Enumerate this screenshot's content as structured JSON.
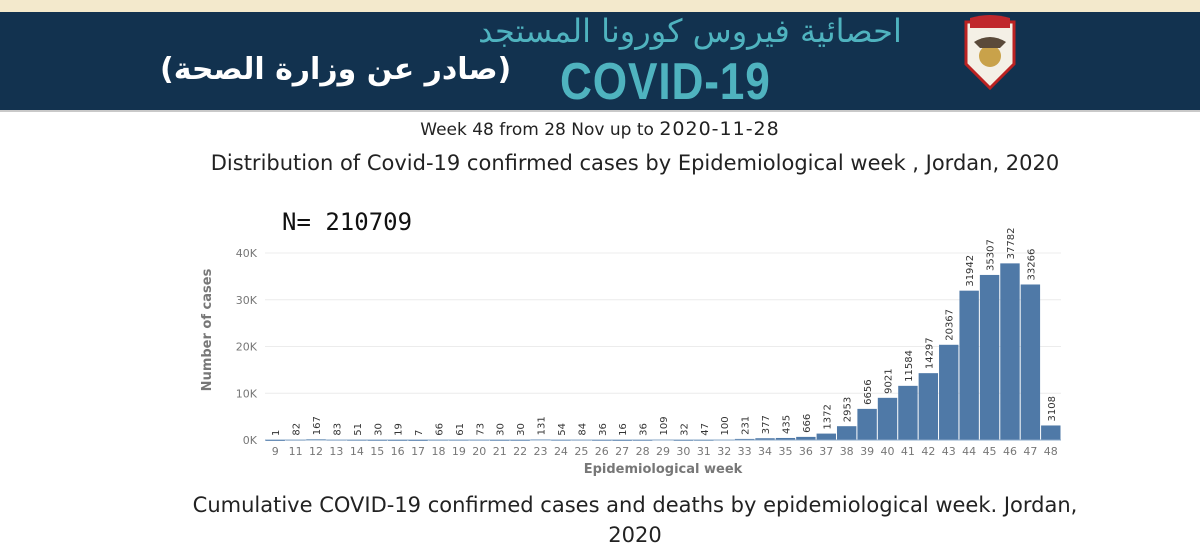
{
  "header": {
    "arabic_title": "احصائية فيروس كورونا المستجد",
    "covid_label": "COVID-19",
    "arabic_subtitle": "(صادر عن وزارة الصحة)",
    "emblem": "jordan-coat-of-arms"
  },
  "week_line": {
    "text": "Week 48 from 28 Nov up to ",
    "date": "2020-11-28"
  },
  "n_label": "N= 210709",
  "next_title": "Cumulative COVID-19 confirmed cases and deaths by epidemiological week. Jordan, 2020",
  "chart_data": {
    "type": "bar",
    "title": "Distribution of Covid-19 confirmed cases by Epidemiological week , Jordan, 2020",
    "xlabel": "Epidemiological week",
    "ylabel": "Number of cases",
    "ylim": [
      0,
      40000
    ],
    "yticks": [
      "0K",
      "10K",
      "20K",
      "30K",
      "40K"
    ],
    "grid": true,
    "bar_color": "#4f79a7",
    "categories": [
      "9",
      "11",
      "12",
      "13",
      "14",
      "15",
      "16",
      "17",
      "18",
      "19",
      "20",
      "21",
      "22",
      "23",
      "24",
      "25",
      "26",
      "27",
      "28",
      "29",
      "30",
      "31",
      "32",
      "33",
      "34",
      "35",
      "36",
      "37",
      "38",
      "39",
      "40",
      "41",
      "42",
      "43",
      "44",
      "45",
      "46",
      "47",
      "48"
    ],
    "values": [
      1,
      82,
      167,
      83,
      51,
      30,
      19,
      7,
      66,
      61,
      73,
      30,
      30,
      131,
      54,
      84,
      36,
      16,
      36,
      109,
      32,
      47,
      100,
      231,
      377,
      435,
      666,
      1372,
      2953,
      6656,
      9021,
      11584,
      14297,
      20367,
      31942,
      35307,
      37782,
      33266,
      3108
    ]
  }
}
